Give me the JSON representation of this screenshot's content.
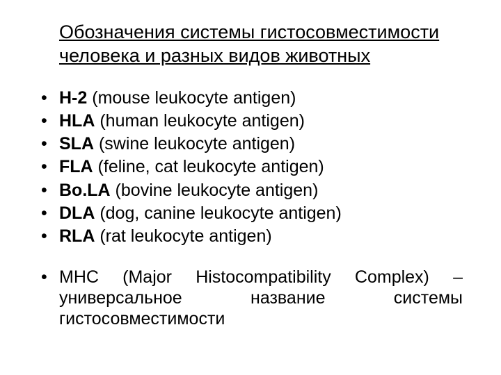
{
  "colors": {
    "background": "#ffffff",
    "text": "#000000"
  },
  "typography": {
    "font_family": "Arial",
    "title_fontsize": 27,
    "body_fontsize": 25
  },
  "title": "Обозначения системы гистосовместимости человека и разных видов животных",
  "items": [
    {
      "abbr": "Н-2",
      "desc": " (mouse leukocyte antigen)"
    },
    {
      "abbr": "HLA",
      "desc": " (human leukocyte antigen)"
    },
    {
      "abbr": "SLA",
      "desc": " (swine leukocyte antigen)"
    },
    {
      "abbr": "FLA",
      "desc": " (feline, cat leukocyte antigen)"
    },
    {
      "abbr": "Bo.LA",
      "desc": " (bovine leukocyte antigen)"
    },
    {
      "abbr": "DLA",
      "desc": " (dog, canine leukocyte antigen)"
    },
    {
      "abbr": "RLA",
      "desc": " (rat leukocyte antigen)"
    }
  ],
  "footer": {
    "line1": "MHC (Major Histocompatibility Complex) –",
    "line2": "универсальное название системы",
    "line3": "гистосовместимости"
  }
}
